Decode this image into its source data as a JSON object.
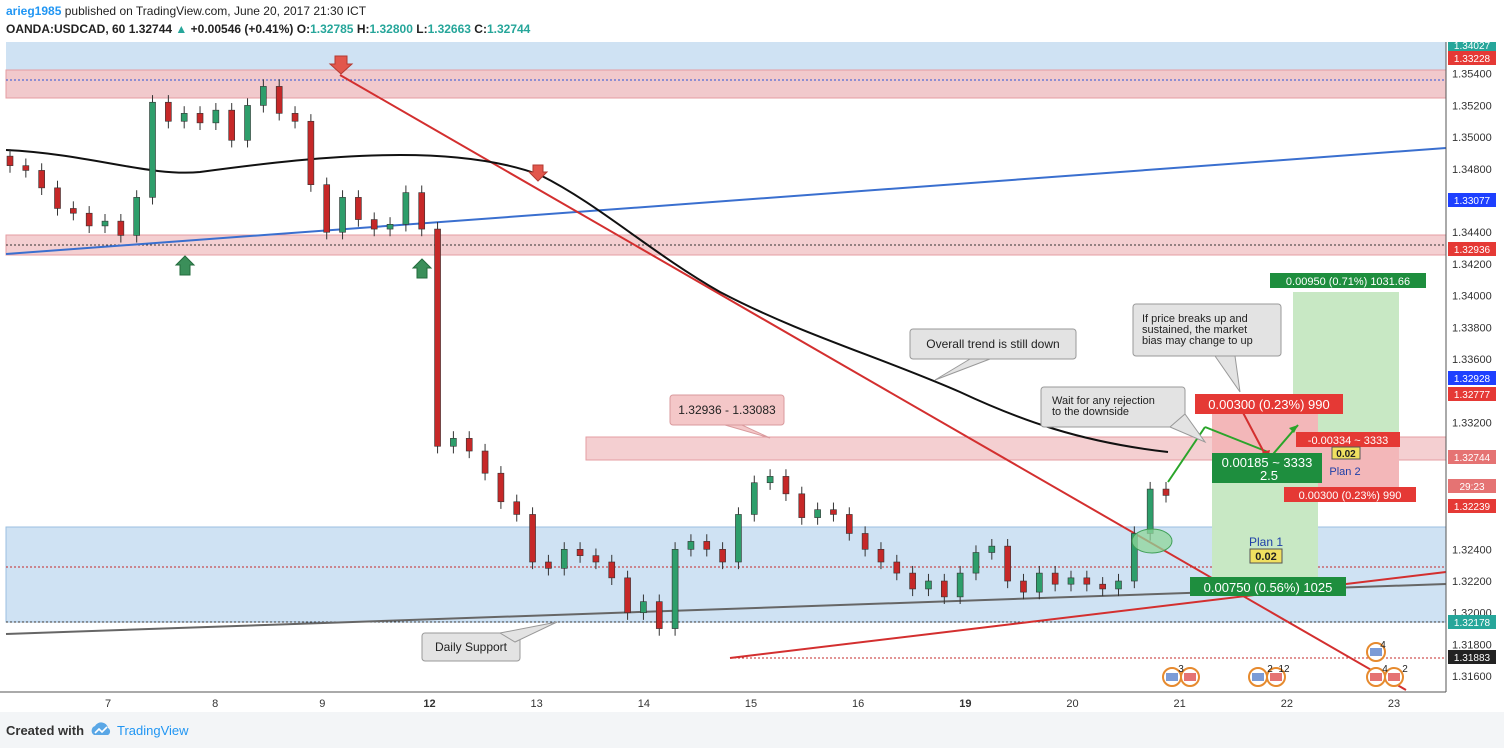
{
  "header": {
    "user": "arieg1985",
    "published": "published on TradingView.com, June 20, 2017 21:30 ICT",
    "symbol": "OANDA:USDCAD, 60",
    "last": "1.32744",
    "change_arrow": "▲",
    "change": "+0.00546 (+0.41%)",
    "o_label": "O:",
    "o_value": "1.32785",
    "h_label": "H:",
    "h_value": "1.32800",
    "l_label": "L:",
    "l_value": "1.32663",
    "c_label": "C:",
    "c_value": "1.32744"
  },
  "footer": {
    "created_with": "Created with",
    "brand": "TradingView"
  },
  "chart_data": {
    "type": "candlestick",
    "title": "OANDA:USDCAD, 60",
    "ylim": [
      1.315,
      1.356
    ],
    "y_ticks": [
      "1.35400",
      "1.35200",
      "1.35000",
      "1.34800",
      "1.34600",
      "1.34400",
      "1.34200",
      "1.34000",
      "1.33800",
      "1.33600",
      "1.33400",
      "1.33200",
      "1.32400",
      "1.32200",
      "1.32000",
      "1.31800",
      "1.31600"
    ],
    "x_ticks": [
      "7",
      "8",
      "9",
      "12",
      "13",
      "14",
      "15",
      "16",
      "19",
      "20",
      "21",
      "22",
      "23"
    ],
    "price_labels": [
      {
        "text": "1.34027",
        "color": "#26a69a"
      },
      {
        "text": "1.33228",
        "color": "#e53935"
      },
      {
        "text": "1.33077",
        "color": "#1e40ff"
      },
      {
        "text": "1.32936",
        "color": "#e53935"
      },
      {
        "text": "1.32928",
        "color": "#1e40ff"
      },
      {
        "text": "1.32777",
        "color": "#e53935"
      },
      {
        "text": "1.32744",
        "color": "#e57373"
      },
      {
        "text": "29:23",
        "color": "#e57373"
      },
      {
        "text": "1.32239",
        "color": "#e53935"
      },
      {
        "text": "1.32178",
        "color": "#26a69a"
      },
      {
        "text": "1.31883",
        "color": "#222222"
      }
    ],
    "series": [
      {
        "closes": [
          1.3482,
          1.3479,
          1.3468,
          1.3455,
          1.3452,
          1.3444,
          1.3447,
          1.3438,
          1.3462,
          1.3522,
          1.351,
          1.3515,
          1.3509,
          1.3517,
          1.3498,
          1.352,
          1.3532,
          1.3515,
          1.351,
          1.347,
          1.344,
          1.3462,
          1.3448,
          1.3442,
          1.3445,
          1.3465,
          1.3442,
          1.3305,
          1.331,
          1.3302,
          1.3288,
          1.327,
          1.3262,
          1.3232,
          1.3228,
          1.324,
          1.3236,
          1.3232,
          1.3222,
          1.32,
          1.3207,
          1.319,
          1.324,
          1.3245,
          1.324,
          1.3232,
          1.3262,
          1.3282,
          1.3286,
          1.3275,
          1.326,
          1.3265,
          1.3262,
          1.325,
          1.324,
          1.3232,
          1.3225,
          1.3215,
          1.322,
          1.321,
          1.3225,
          1.3238,
          1.3242,
          1.322,
          1.3213,
          1.3225,
          1.3218,
          1.3222,
          1.3218,
          1.3215,
          1.322,
          1.325,
          1.3278,
          1.3274
        ]
      }
    ],
    "levels": [
      {
        "label": "1.32936 - 1.33083"
      },
      {
        "label": "Daily Support"
      }
    ],
    "annotations": [
      "Overall trend is still down",
      "If price breaks up and sustained, the market bias may change to up",
      "Wait for any rejection to the downside",
      "Plan 1",
      "Plan 2"
    ],
    "tags": [
      {
        "text": "0.00950 (0.71%) 1031.66",
        "color": "#1e8e3e"
      },
      {
        "text": "0.00300 (0.23%) 990",
        "color": "#e53935"
      },
      {
        "text": "0.00185 ~ 3333",
        "color": "#1e8e3e"
      },
      {
        "text": "2.5",
        "color": "#1e8e3e"
      },
      {
        "text": "-0.00334 ~ 3333",
        "color": "#e53935"
      },
      {
        "text": "0.02",
        "color": "#f0e060"
      },
      {
        "text": "0.00300 (0.23%) 990",
        "color": "#e53935"
      },
      {
        "text": "0.02",
        "color": "#f0e060"
      },
      {
        "text": "0.00750 (0.56%) 1025",
        "color": "#1e8e3e"
      }
    ],
    "event_counts": [
      "3",
      "2",
      "12",
      "4",
      "4",
      "2"
    ],
    "grid": false
  }
}
